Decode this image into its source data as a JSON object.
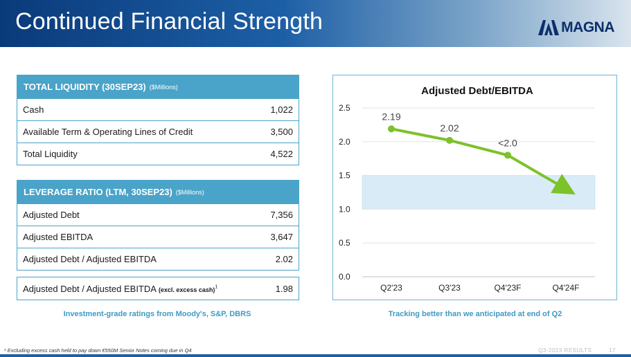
{
  "header": {
    "title": "Continued Financial Strength",
    "logo_text": "MAGNA"
  },
  "liquidity": {
    "title": "TOTAL LIQUIDITY (30SEP23)",
    "units": "($Millions)",
    "rows": [
      {
        "label": "Cash",
        "value": "1,022"
      },
      {
        "label": "Available Term & Operating Lines of Credit",
        "value": "3,500"
      },
      {
        "label": "Total Liquidity",
        "value": "4,522"
      }
    ]
  },
  "leverage": {
    "title": "LEVERAGE RATIO (LTM, 30SEP23)",
    "units": "($Millions)",
    "rows": [
      {
        "label": "Adjusted Debt",
        "value": "7,356"
      },
      {
        "label": "Adjusted EBITDA",
        "value": "3,647"
      },
      {
        "label": "Adjusted Debt / Adjusted EBITDA",
        "value": "2.02"
      }
    ]
  },
  "excl_row": {
    "label": "Adjusted Debt / Adjusted EBITDA",
    "qualifier": "(excl. excess cash)",
    "footnote_mark": "1",
    "value": "1.98"
  },
  "captions": {
    "left": "Investment-grade ratings from Moody's, S&P, DBRS",
    "right": "Tracking better than we anticipated at end of Q2"
  },
  "footnote": "¹ Excluding excess cash held to pay down €550M Senior Notes coming due in Q4",
  "page": {
    "label": "Q3-2023 RESULTS",
    "number": "17"
  },
  "colors": {
    "line": "#7cc22a",
    "band": "#d8ebf6",
    "table_header": "#4aa3c8",
    "caption": "#3e9ac4"
  },
  "chart_data": {
    "type": "line",
    "title": "Adjusted Debt/EBITDA",
    "categories": [
      "Q2'23",
      "Q3'23",
      "Q4'23F",
      "Q4'24F"
    ],
    "values": [
      2.19,
      2.02,
      1.8,
      1.3
    ],
    "data_labels": [
      "2.19",
      "2.02",
      "<2.0",
      ""
    ],
    "arrow_end": true,
    "target_band": [
      1.0,
      1.5
    ],
    "ylim": [
      0,
      2.5
    ],
    "yticks": [
      "0.0",
      "0.5",
      "1.0",
      "1.5",
      "2.0",
      "2.5"
    ],
    "grid": true
  }
}
